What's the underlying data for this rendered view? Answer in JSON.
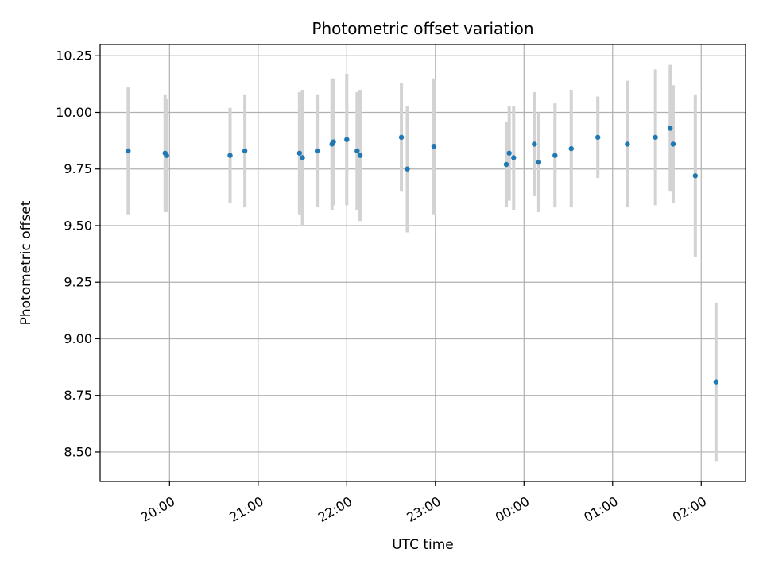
{
  "chart_data": {
    "type": "scatter",
    "title": "Photometric offset variation",
    "xlabel": "UTC time",
    "ylabel": "Photometric offset",
    "xlim": [
      "19:13",
      "02:30"
    ],
    "ylim": [
      8.37,
      10.3
    ],
    "grid": true,
    "x_ticks": [
      "20:00",
      "21:00",
      "22:00",
      "23:00",
      "00:00",
      "01:00",
      "02:00"
    ],
    "y_ticks": [
      "8.50",
      "8.75",
      "9.00",
      "9.25",
      "9.50",
      "9.75",
      "10.00",
      "10.25"
    ],
    "colors": {
      "point": "#1f77b4",
      "errorbar": "#d3d3d3",
      "grid": "#b0b0b0"
    },
    "points": [
      {
        "x": "19:32",
        "y": 9.83,
        "err": 0.28
      },
      {
        "x": "19:57",
        "y": 9.82,
        "err": 0.26
      },
      {
        "x": "19:58",
        "y": 9.81,
        "err": 0.25
      },
      {
        "x": "20:41",
        "y": 9.81,
        "err": 0.21
      },
      {
        "x": "20:51",
        "y": 9.83,
        "err": 0.25
      },
      {
        "x": "21:28",
        "y": 9.82,
        "err": 0.27
      },
      {
        "x": "21:30",
        "y": 9.8,
        "err": 0.3
      },
      {
        "x": "21:40",
        "y": 9.83,
        "err": 0.25
      },
      {
        "x": "21:50",
        "y": 9.86,
        "err": 0.29
      },
      {
        "x": "21:51",
        "y": 9.87,
        "err": 0.28
      },
      {
        "x": "22:00",
        "y": 9.88,
        "err": 0.29
      },
      {
        "x": "22:07",
        "y": 9.83,
        "err": 0.26
      },
      {
        "x": "22:09",
        "y": 9.81,
        "err": 0.29
      },
      {
        "x": "22:37",
        "y": 9.89,
        "err": 0.24
      },
      {
        "x": "22:41",
        "y": 9.75,
        "err": 0.28
      },
      {
        "x": "22:59",
        "y": 9.85,
        "err": 0.3
      },
      {
        "x": "23:48",
        "y": 9.77,
        "err": 0.19
      },
      {
        "x": "23:50",
        "y": 9.82,
        "err": 0.21
      },
      {
        "x": "23:53",
        "y": 9.8,
        "err": 0.23
      },
      {
        "x": "00:07",
        "y": 9.86,
        "err": 0.23
      },
      {
        "x": "00:10",
        "y": 9.78,
        "err": 0.22
      },
      {
        "x": "00:21",
        "y": 9.81,
        "err": 0.23
      },
      {
        "x": "00:32",
        "y": 9.84,
        "err": 0.26
      },
      {
        "x": "00:50",
        "y": 9.89,
        "err": 0.18
      },
      {
        "x": "01:10",
        "y": 9.86,
        "err": 0.28
      },
      {
        "x": "01:29",
        "y": 9.89,
        "err": 0.3
      },
      {
        "x": "01:39",
        "y": 9.93,
        "err": 0.28
      },
      {
        "x": "01:41",
        "y": 9.86,
        "err": 0.26
      },
      {
        "x": "01:56",
        "y": 9.72,
        "err": 0.36
      },
      {
        "x": "02:10",
        "y": 8.81,
        "err": 0.35
      }
    ]
  }
}
